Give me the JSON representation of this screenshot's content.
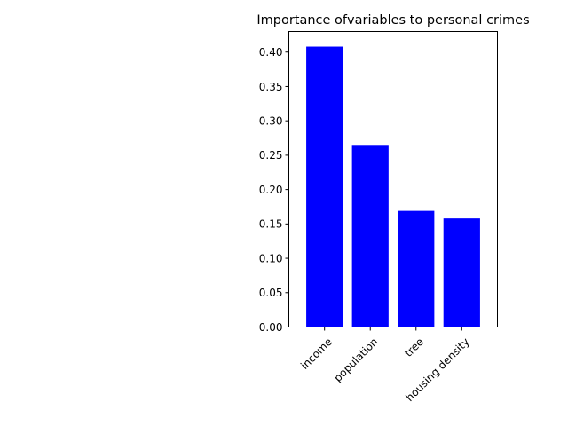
{
  "chart_data": {
    "type": "bar",
    "title": "Importance ofvariables to personal crimes",
    "xlabel": "",
    "ylabel": "",
    "categories": [
      "income",
      "population",
      "tree",
      "housing density"
    ],
    "values": [
      0.408,
      0.265,
      0.169,
      0.158
    ],
    "ylim": [
      0,
      0.43
    ],
    "yticks": [
      0.0,
      0.05,
      0.1,
      0.15,
      0.2,
      0.25,
      0.3,
      0.35,
      0.4
    ],
    "ytick_labels": [
      "0.00",
      "0.05",
      "0.10",
      "0.15",
      "0.20",
      "0.25",
      "0.30",
      "0.35",
      "0.40"
    ],
    "bar_color": "#0000ff",
    "grid": false,
    "legend": "none",
    "xtick_rotation": 45
  }
}
